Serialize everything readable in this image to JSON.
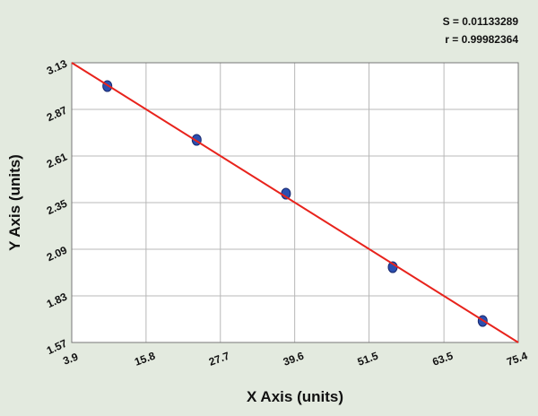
{
  "chart_data": {
    "type": "scatter",
    "annotations": [
      "S = 0.01133289",
      "r = 0.99982364"
    ],
    "x_label": "X Axis (units)",
    "y_label": "Y Axis (units)",
    "series": [
      {
        "type": "scatter",
        "color": "#2b4fb0",
        "x": [
          9.6,
          23.9,
          38.2,
          55.3,
          69.7
        ],
        "values": [
          3.0,
          2.7,
          2.4,
          1.99,
          1.69
        ]
      },
      {
        "type": "line",
        "color": "#e8231c",
        "x": [
          3.9,
          75.4
        ],
        "values": [
          3.13,
          1.57
        ]
      }
    ],
    "xlim": [
      3.9,
      75.4
    ],
    "xticks": [
      3.9,
      15.8,
      27.7,
      39.6,
      51.5,
      63.5,
      75.4
    ],
    "ylim": [
      1.57,
      3.13
    ],
    "yticks": [
      1.57,
      1.83,
      2.09,
      2.35,
      2.61,
      2.87,
      3.13
    ],
    "grid": true
  }
}
